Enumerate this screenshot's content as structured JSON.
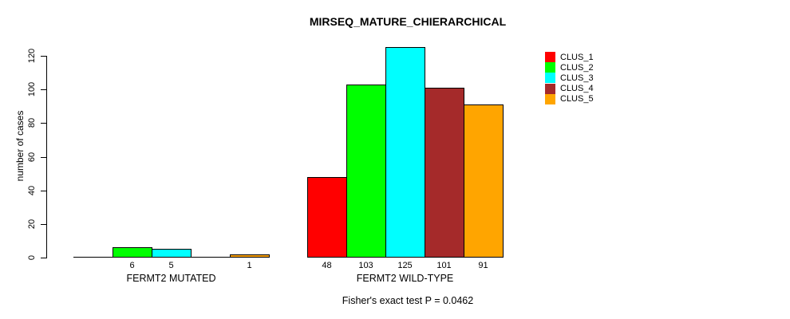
{
  "chart_data": {
    "type": "bar",
    "title": "MIRSEQ_MATURE_CHIERARCHICAL",
    "ylabel": "number of cases",
    "xlabel": "",
    "subtitle": "Fisher's exact test P = 0.0462",
    "categories": [
      "FERMT2 MUTATED",
      "FERMT2 WILD-TYPE"
    ],
    "series": [
      {
        "name": "CLUS_1",
        "color": "#FF0000",
        "values": [
          0,
          48
        ]
      },
      {
        "name": "CLUS_2",
        "color": "#00FF00",
        "values": [
          6,
          103
        ]
      },
      {
        "name": "CLUS_3",
        "color": "#00FFFF",
        "values": [
          5,
          125
        ]
      },
      {
        "name": "CLUS_4",
        "color": "#A52A2A",
        "values": [
          0,
          101
        ]
      },
      {
        "name": "CLUS_5",
        "color": "#FFA500",
        "values": [
          1,
          91
        ]
      }
    ],
    "yticks": [
      0,
      20,
      40,
      60,
      80,
      100,
      120
    ],
    "ylim": [
      0,
      125
    ],
    "grid": false,
    "legend_position": "right",
    "show_bar_value_labels": true,
    "zero_bars_unlabeled": true
  }
}
